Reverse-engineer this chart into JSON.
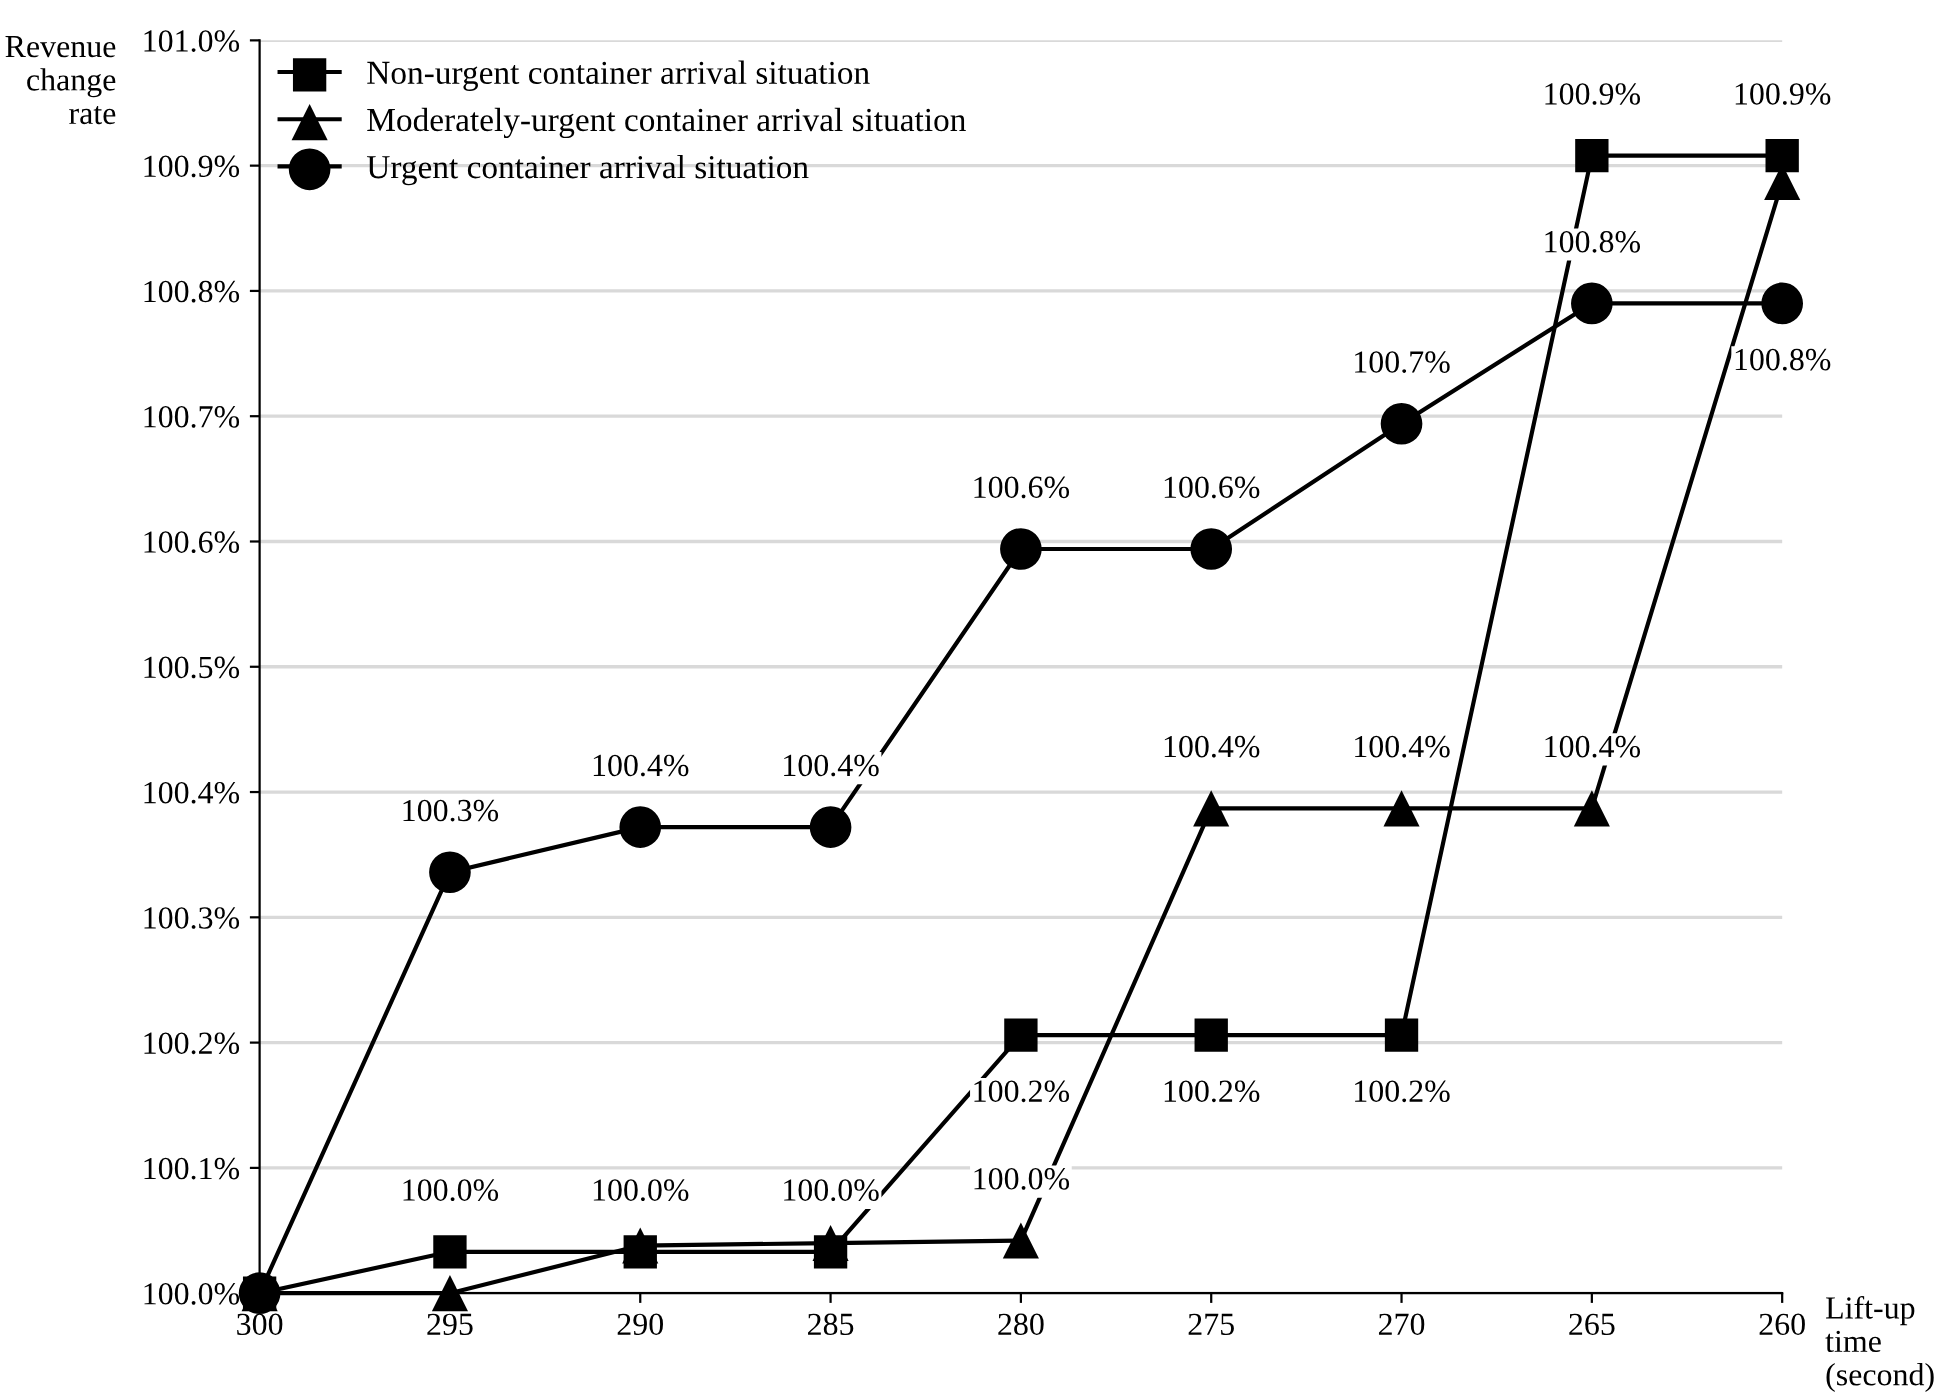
{
  "chart_data": {
    "type": "line",
    "xlabel": "Lift-up time (second)",
    "ylabel": "Revenue change rate",
    "x": [
      300,
      295,
      290,
      285,
      280,
      275,
      270,
      265,
      260
    ],
    "series": [
      {
        "name": "Non-urgent container arrival situation",
        "color": "#000000",
        "marker": "square",
        "values": [
          100.0,
          100.033,
          100.033,
          100.033,
          100.206,
          100.206,
          100.206,
          100.908,
          100.908
        ],
        "value_labels": [
          null,
          "100.0%",
          "100.0%",
          "100.0%",
          "100.2%",
          "100.2%",
          "100.2%",
          "100.9%",
          "100.9%"
        ]
      },
      {
        "name": "Moderately-urgent container arrival situation",
        "color": "#000000",
        "marker": "triangle",
        "values": [
          100.0,
          100.0,
          100.038,
          100.04,
          100.042,
          100.387,
          100.387,
          100.387,
          100.887
        ],
        "value_labels": [
          null,
          null,
          null,
          null,
          "100.0%",
          "100.4%",
          "100.4%",
          "100.4%",
          null
        ]
      },
      {
        "name": "Urgent container arrival situation",
        "color": "#000000",
        "marker": "circle",
        "values": [
          100.0,
          100.336,
          100.372,
          100.372,
          100.594,
          100.594,
          100.694,
          100.79,
          100.79
        ],
        "value_labels": [
          null,
          "100.3%",
          "100.4%",
          "100.4%",
          "100.6%",
          "100.6%",
          "100.7%",
          "100.8%",
          "100.8%"
        ]
      }
    ],
    "xlim": [
      300,
      260
    ],
    "xticks": [
      300,
      295,
      290,
      285,
      280,
      275,
      270,
      265,
      260
    ],
    "ylim": [
      100.0,
      101.0
    ],
    "yticks": [
      {
        "value": 100.0,
        "label": "100.0%"
      },
      {
        "value": 100.1,
        "label": "100.1%"
      },
      {
        "value": 100.2,
        "label": "100.2%"
      },
      {
        "value": 100.3,
        "label": "100.3%"
      },
      {
        "value": 100.4,
        "label": "100.4%"
      },
      {
        "value": 100.5,
        "label": "100.5%"
      },
      {
        "value": 100.6,
        "label": "100.6%"
      },
      {
        "value": 100.7,
        "label": "100.7%"
      },
      {
        "value": 100.8,
        "label": "100.8%"
      },
      {
        "value": 100.9,
        "label": "100.9%"
      },
      {
        "value": 101.0,
        "label": "101.0%"
      }
    ],
    "grid": "y",
    "legend": "top left",
    "line_style": "solid"
  }
}
